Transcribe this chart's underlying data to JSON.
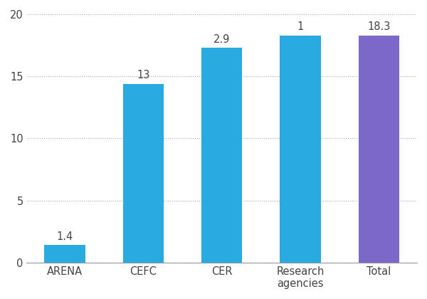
{
  "categories": [
    "ARENA",
    "CEFC",
    "CER",
    "Research\nagencies",
    "Total"
  ],
  "bar_heights": [
    1.4,
    14.4,
    17.3,
    18.3,
    18.3
  ],
  "bar_colors": [
    "#29ABE2",
    "#29ABE2",
    "#29ABE2",
    "#29ABE2",
    "#7B68C8"
  ],
  "label_values": [
    "1.4",
    "13",
    "2.9",
    "1",
    "18.3"
  ],
  "ylim": [
    0,
    20
  ],
  "yticks": [
    0,
    5,
    10,
    15,
    20
  ],
  "background_color": "#FFFFFF",
  "grid_color": "#AAAAAA",
  "label_fontsize": 10.5,
  "tick_fontsize": 10.5
}
